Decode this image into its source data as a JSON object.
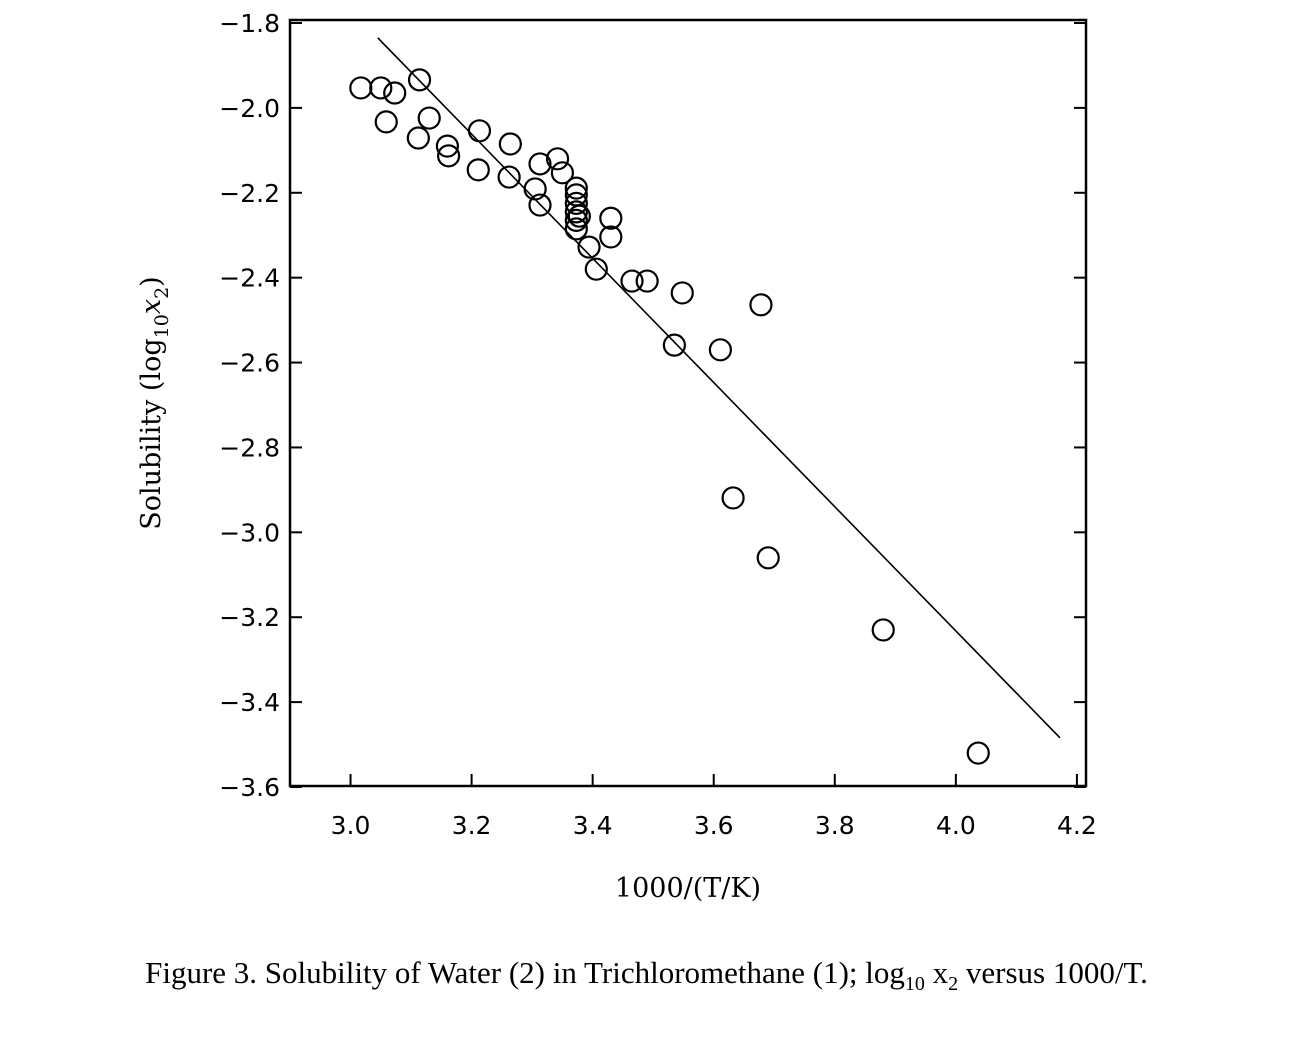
{
  "chart_data": {
    "type": "scatter",
    "title": "",
    "xlabel": "1000/(T/K)",
    "ylabel_main": "Solubility",
    "ylabel_sym": "log",
    "ylabel_sub": "10",
    "ylabel_var": "x",
    "ylabel_var_sub": "2",
    "xlim": [
      2.9,
      4.215
    ],
    "ylim": [
      -3.6,
      -1.8
    ],
    "xticks": [
      3.0,
      3.2,
      3.4,
      3.6,
      3.8,
      4.0,
      4.2
    ],
    "xtick_labels": [
      "3.0",
      "3.2",
      "3.4",
      "3.6",
      "3.8",
      "4.0",
      "4.2"
    ],
    "yticks": [
      -1.8,
      -2.0,
      -2.2,
      -2.4,
      -2.6,
      -2.8,
      -3.0,
      -3.2,
      -3.4,
      -3.6
    ],
    "ytick_labels": [
      "−1.8",
      "−2.0",
      "−2.2",
      "−2.4",
      "−2.6",
      "−2.8",
      "−3.0",
      "−3.2",
      "−3.4",
      "−3.6"
    ],
    "grid": false,
    "series": [
      {
        "name": "experimental",
        "marker": "open-circle",
        "x": [
          3.017,
          3.05,
          3.073,
          3.114,
          3.059,
          3.112,
          3.13,
          3.16,
          3.162,
          3.213,
          3.211,
          3.264,
          3.262,
          3.313,
          3.342,
          3.305,
          3.313,
          3.35,
          3.373,
          3.373,
          3.373,
          3.373,
          3.373,
          3.378,
          3.373,
          3.394,
          3.406,
          3.43,
          3.43,
          3.465,
          3.49,
          3.548,
          3.535,
          3.611,
          3.678,
          3.632,
          3.69,
          3.88,
          4.037
        ],
        "y": [
          -1.953,
          -1.953,
          -1.965,
          -1.934,
          -2.033,
          -2.071,
          -2.024,
          -2.09,
          -2.113,
          -2.054,
          -2.146,
          -2.085,
          -2.163,
          -2.132,
          -2.12,
          -2.191,
          -2.229,
          -2.153,
          -2.189,
          -2.205,
          -2.225,
          -2.245,
          -2.265,
          -2.255,
          -2.285,
          -2.328,
          -2.38,
          -2.26,
          -2.304,
          -2.408,
          -2.408,
          -2.436,
          -2.559,
          -2.57,
          -2.464,
          -2.919,
          -3.06,
          -3.23,
          -3.52
        ]
      },
      {
        "name": "fit",
        "type": "line",
        "x": [
          3.045,
          4.172
        ],
        "y": [
          -1.835,
          -3.484
        ]
      }
    ]
  },
  "caption": {
    "prefix": "Figure 3. Solubility of Water (2) in Trichloromethane (1); log",
    "sub1": "10",
    "mid": " x",
    "sub2": "2",
    "suffix": " versus 1000/T."
  }
}
